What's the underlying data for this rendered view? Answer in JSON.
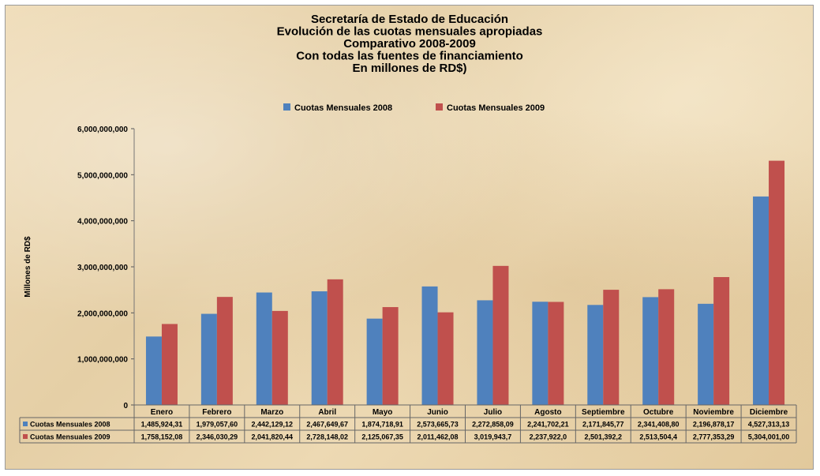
{
  "chart_data": {
    "type": "bar",
    "title_lines": [
      "Secretaría de Estado de Educación",
      "Evolución de las cuotas mensuales apropiadas",
      "Comparativo 2008-2009",
      "Con todas las fuentes de financiamiento",
      "En millones de RD$)"
    ],
    "ylabel": "Millones de RD$",
    "xlabel": "",
    "ylim": [
      0,
      6000000000
    ],
    "yticks": [
      0,
      1000000000,
      2000000000,
      3000000000,
      4000000000,
      5000000000,
      6000000000
    ],
    "ytick_labels": [
      "0",
      "1,000,000,000",
      "2,000,000,000",
      "3,000,000,000",
      "4,000,000,000",
      "5,000,000,000",
      "6,000,000,000"
    ],
    "grid": false,
    "legend_position": "top",
    "categories": [
      "Enero",
      "Febrero",
      "Marzo",
      "Abril",
      "Mayo",
      "Junio",
      "Julio",
      "Agosto",
      "Septiembre",
      "Octubre",
      "Noviembre",
      "Diciembre"
    ],
    "series": [
      {
        "name": "Cuotas Mensuales 2008",
        "color": "#4f81bd",
        "values": [
          1485924310,
          1979057600,
          2442129120,
          2467649670,
          1874718910,
          2573665730,
          2272858090,
          2241702210,
          2171845770,
          2341408800,
          2196878170,
          4527313130
        ],
        "table_labels": [
          "1,485,924,31",
          "1,979,057,60",
          "2,442,129,12",
          "2,467,649,67",
          "1,874,718,91",
          "2,573,665,73",
          "2,272,858,09",
          "2,241,702,21",
          "2,171,845,77",
          "2,341,408,80",
          "2,196,878,17",
          "4,527,313,13"
        ]
      },
      {
        "name": "Cuotas Mensuales 2009",
        "color": "#c0504d",
        "values": [
          1758152080,
          2346030290,
          2041820440,
          2728148020,
          2125067350,
          2011462080,
          3019943700,
          2237922000,
          2501392200,
          2513504400,
          2777353290,
          5304001000
        ],
        "table_labels": [
          "1,758,152,08",
          "2,346,030,29",
          "2,041,820,44",
          "2,728,148,02",
          "2,125,067,35",
          "2,011,462,08",
          "3,019,943,7",
          "2,237,922,0",
          "2,501,392,2",
          "2,513,504,4",
          "2,777,353,29",
          "5,304,001,00"
        ]
      }
    ]
  }
}
